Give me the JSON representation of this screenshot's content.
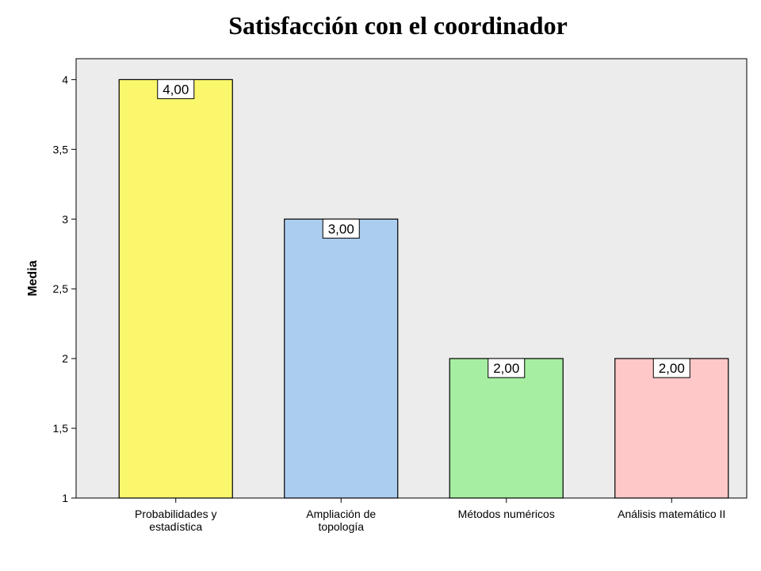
{
  "chart_data": {
    "type": "bar",
    "title": "Satisfacción con el coordinador",
    "xlabel": "",
    "ylabel": "Media",
    "categories": [
      [
        "Probabilidades y",
        "estadística"
      ],
      [
        "Ampliación de",
        "topología"
      ],
      [
        "Métodos numéricos"
      ],
      [
        "Análisis matemático II"
      ]
    ],
    "values": [
      4.0,
      3.0,
      2.0,
      2.0
    ],
    "data_labels": [
      "4,00",
      "3,00",
      "2,00",
      "2,00"
    ],
    "colors": [
      "#fbf76c",
      "#abcdef",
      "#a6eea1",
      "#ffc8c8"
    ],
    "ylim": [
      1,
      4.15
    ],
    "yticks": [
      1,
      1.5,
      2,
      2.5,
      3,
      3.5,
      4
    ],
    "ytick_labels": [
      "1",
      "1,5",
      "2",
      "2,5",
      "3",
      "3,5",
      "4"
    ],
    "plot_background": "#ececec",
    "grid": false,
    "legend": "none"
  }
}
